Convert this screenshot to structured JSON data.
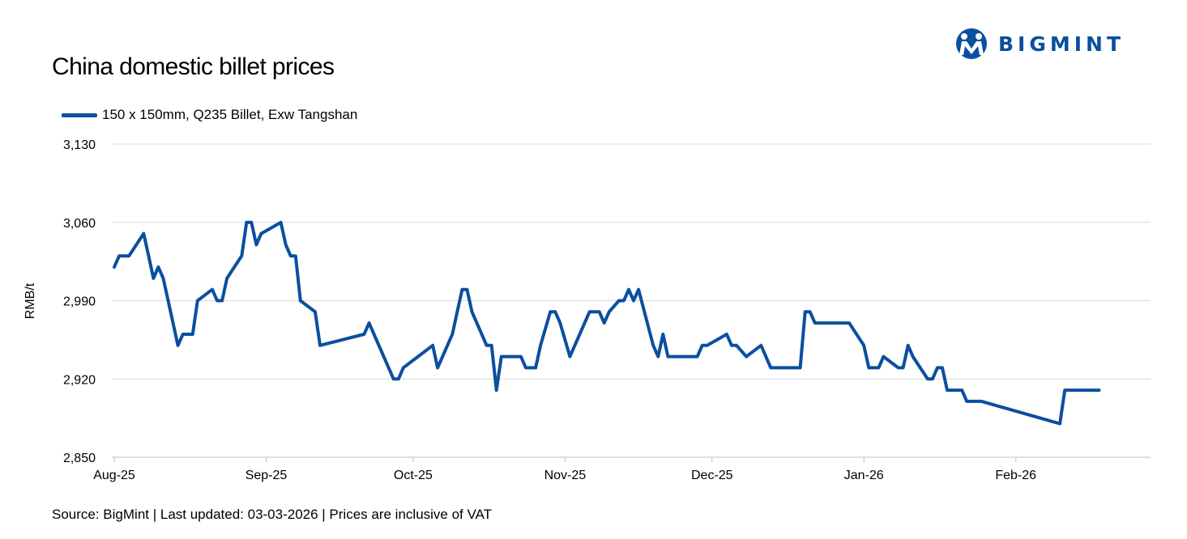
{
  "title": "China domestic billet prices",
  "brand": {
    "name": "BIGMINT",
    "color": "#0a4fa0"
  },
  "footer": "Source: BigMint | Last updated: 03-03-2026 | Prices are inclusive of VAT",
  "chart_data": {
    "type": "line",
    "title": "China domestic billet prices",
    "xlabel": "",
    "ylabel": "RMB/t",
    "ylim": [
      2850,
      3130
    ],
    "yticks": [
      2850,
      2920,
      2990,
      3060,
      3130
    ],
    "ytick_labels": [
      "2,850",
      "2,920",
      "2,990",
      "3,060",
      "3,130"
    ],
    "xlim": [
      "2025-08-01",
      "2026-02-28"
    ],
    "xticks": [
      "2025-08-01",
      "2025-09-01",
      "2025-10-01",
      "2025-11-01",
      "2025-12-01",
      "2026-01-01",
      "2026-02-01"
    ],
    "xtick_labels": [
      "Aug-25",
      "Sep-25",
      "Oct-25",
      "Nov-25",
      "Dec-25",
      "Jan-26",
      "Feb-26"
    ],
    "grid": "horizontal",
    "legend_position": "top-left",
    "series": [
      {
        "name": "150 x 150mm, Q235 Billet, Exw Tangshan",
        "color": "#0a4fa0",
        "points": [
          [
            "2025-08-01",
            3020
          ],
          [
            "2025-08-02",
            3030
          ],
          [
            "2025-08-04",
            3030
          ],
          [
            "2025-08-07",
            3050
          ],
          [
            "2025-08-08",
            3030
          ],
          [
            "2025-08-09",
            3010
          ],
          [
            "2025-08-10",
            3020
          ],
          [
            "2025-08-11",
            3010
          ],
          [
            "2025-08-14",
            2950
          ],
          [
            "2025-08-15",
            2960
          ],
          [
            "2025-08-17",
            2960
          ],
          [
            "2025-08-18",
            2990
          ],
          [
            "2025-08-21",
            3000
          ],
          [
            "2025-08-22",
            2990
          ],
          [
            "2025-08-23",
            2990
          ],
          [
            "2025-08-24",
            3010
          ],
          [
            "2025-08-27",
            3030
          ],
          [
            "2025-08-28",
            3060
          ],
          [
            "2025-08-29",
            3060
          ],
          [
            "2025-08-30",
            3040
          ],
          [
            "2025-08-31",
            3050
          ],
          [
            "2025-09-04",
            3060
          ],
          [
            "2025-09-05",
            3040
          ],
          [
            "2025-09-06",
            3030
          ],
          [
            "2025-09-07",
            3030
          ],
          [
            "2025-09-08",
            2990
          ],
          [
            "2025-09-11",
            2980
          ],
          [
            "2025-09-12",
            2950
          ],
          [
            "2025-09-21",
            2960
          ],
          [
            "2025-09-22",
            2970
          ],
          [
            "2025-09-25",
            2940
          ],
          [
            "2025-09-27",
            2920
          ],
          [
            "2025-09-28",
            2920
          ],
          [
            "2025-09-29",
            2930
          ],
          [
            "2025-10-05",
            2950
          ],
          [
            "2025-10-06",
            2930
          ],
          [
            "2025-10-09",
            2960
          ],
          [
            "2025-10-10",
            2980
          ],
          [
            "2025-10-11",
            3000
          ],
          [
            "2025-10-12",
            3000
          ],
          [
            "2025-10-13",
            2980
          ],
          [
            "2025-10-16",
            2950
          ],
          [
            "2025-10-17",
            2950
          ],
          [
            "2025-10-18",
            2910
          ],
          [
            "2025-10-19",
            2940
          ],
          [
            "2025-10-23",
            2940
          ],
          [
            "2025-10-24",
            2930
          ],
          [
            "2025-10-26",
            2930
          ],
          [
            "2025-10-27",
            2950
          ],
          [
            "2025-10-29",
            2980
          ],
          [
            "2025-10-30",
            2980
          ],
          [
            "2025-10-31",
            2970
          ],
          [
            "2025-11-02",
            2940
          ],
          [
            "2025-11-06",
            2980
          ],
          [
            "2025-11-08",
            2980
          ],
          [
            "2025-11-09",
            2970
          ],
          [
            "2025-11-10",
            2980
          ],
          [
            "2025-11-12",
            2990
          ],
          [
            "2025-11-13",
            2990
          ],
          [
            "2025-11-14",
            3000
          ],
          [
            "2025-11-15",
            2990
          ],
          [
            "2025-11-16",
            3000
          ],
          [
            "2025-11-19",
            2950
          ],
          [
            "2025-11-20",
            2940
          ],
          [
            "2025-11-21",
            2960
          ],
          [
            "2025-11-22",
            2940
          ],
          [
            "2025-11-28",
            2940
          ],
          [
            "2025-11-29",
            2950
          ],
          [
            "2025-11-30",
            2950
          ],
          [
            "2025-12-04",
            2960
          ],
          [
            "2025-12-05",
            2950
          ],
          [
            "2025-12-06",
            2950
          ],
          [
            "2025-12-08",
            2940
          ],
          [
            "2025-12-11",
            2950
          ],
          [
            "2025-12-13",
            2930
          ],
          [
            "2025-12-19",
            2930
          ],
          [
            "2025-12-20",
            2980
          ],
          [
            "2025-12-21",
            2980
          ],
          [
            "2025-12-22",
            2970
          ],
          [
            "2025-12-29",
            2970
          ],
          [
            "2026-01-01",
            2950
          ],
          [
            "2026-01-02",
            2930
          ],
          [
            "2026-01-04",
            2930
          ],
          [
            "2026-01-05",
            2940
          ],
          [
            "2026-01-08",
            2930
          ],
          [
            "2026-01-09",
            2930
          ],
          [
            "2026-01-10",
            2950
          ],
          [
            "2026-01-11",
            2940
          ],
          [
            "2026-01-14",
            2920
          ],
          [
            "2026-01-15",
            2920
          ],
          [
            "2026-01-16",
            2930
          ],
          [
            "2026-01-17",
            2930
          ],
          [
            "2026-01-18",
            2910
          ],
          [
            "2026-01-21",
            2910
          ],
          [
            "2026-01-22",
            2900
          ],
          [
            "2026-01-25",
            2900
          ],
          [
            "2026-02-10",
            2880
          ],
          [
            "2026-02-11",
            2910
          ],
          [
            "2026-02-18",
            2910
          ]
        ]
      }
    ]
  }
}
